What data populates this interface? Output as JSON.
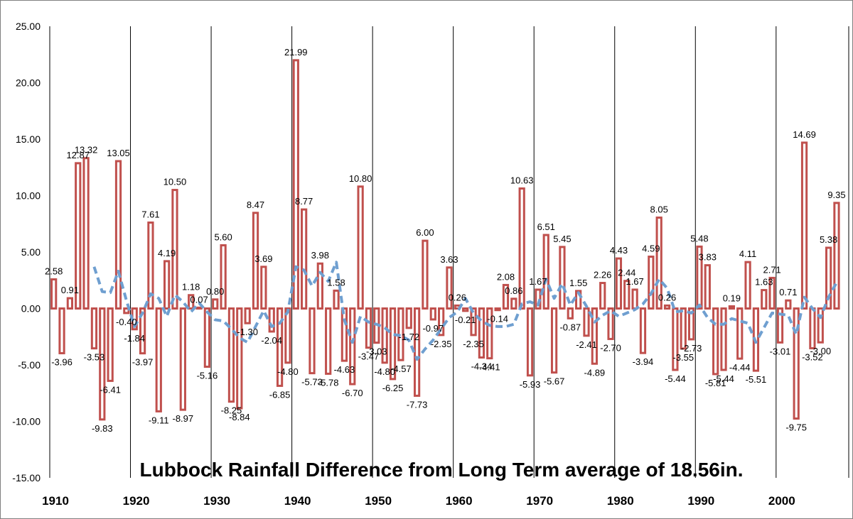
{
  "chart_data": {
    "type": "bar",
    "title": "Lubbock Rainfall Difference from Long Term average of 18.56in.",
    "xlabel": "",
    "ylabel": "",
    "ylim": [
      -15,
      25
    ],
    "yticks": [
      "25.00",
      "20.00",
      "15.00",
      "10.00",
      "5.00",
      "0.00",
      "-5.00",
      "-10.00",
      "-15.00"
    ],
    "xlim": [
      1910,
      2008
    ],
    "xticks": [
      "1910",
      "1920",
      "1930",
      "1940",
      "1950",
      "1960",
      "1970",
      "1980",
      "1990",
      "2000"
    ],
    "grid": "vertical",
    "legend": "none",
    "colors": {
      "bar_fill": "#ffffff",
      "bar_stroke": "#c0504d",
      "trend_line": "#6f9fd0",
      "grid": "#000000"
    },
    "series": [
      {
        "type": "bar",
        "x": [
          1910,
          1911,
          1912,
          1913,
          1914,
          1915,
          1916,
          1917,
          1918,
          1919,
          1920,
          1921,
          1922,
          1923,
          1924,
          1925,
          1926,
          1927,
          1928,
          1929,
          1930,
          1931,
          1932,
          1933,
          1934,
          1935,
          1936,
          1937,
          1938,
          1939,
          1940,
          1941,
          1942,
          1943,
          1944,
          1945,
          1946,
          1947,
          1948,
          1949,
          1950,
          1951,
          1952,
          1953,
          1954,
          1955,
          1956,
          1957,
          1958,
          1959,
          1960,
          1961,
          1962,
          1963,
          1964,
          1965,
          1966,
          1967,
          1968,
          1969,
          1970,
          1971,
          1972,
          1973,
          1974,
          1975,
          1976,
          1977,
          1978,
          1979,
          1980,
          1981,
          1982,
          1983,
          1984,
          1985,
          1986,
          1987,
          1988,
          1989,
          1990,
          1991,
          1992,
          1993,
          1994,
          1995,
          1996,
          1997,
          1998,
          1999,
          2000,
          2001,
          2002,
          2003,
          2004,
          2005,
          2006,
          2007
        ],
        "values": [
          2.58,
          -3.96,
          0.91,
          12.87,
          13.32,
          -3.53,
          -9.83,
          -6.41,
          13.05,
          -0.4,
          -1.84,
          -3.97,
          7.61,
          -9.11,
          4.19,
          10.5,
          -8.97,
          1.18,
          0.07,
          -5.16,
          0.8,
          5.6,
          -8.25,
          -8.84,
          -1.3,
          8.47,
          3.69,
          -2.04,
          -6.85,
          -4.8,
          21.99,
          8.77,
          -5.73,
          3.98,
          -5.78,
          1.58,
          -4.63,
          -6.7,
          10.8,
          -3.47,
          -3.03,
          -4.8,
          -6.25,
          -4.57,
          -1.72,
          -7.73,
          6.0,
          -0.97,
          -2.35,
          3.63,
          0.26,
          -0.21,
          -2.35,
          -4.34,
          -4.41,
          -0.14,
          2.08,
          0.86,
          10.63,
          -5.93,
          1.67,
          6.51,
          -5.67,
          5.45,
          -0.87,
          1.55,
          -2.41,
          -4.89,
          2.26,
          -2.7,
          4.43,
          2.44,
          1.67,
          -3.94,
          4.59,
          8.05,
          0.26,
          -5.44,
          -3.55,
          -2.73,
          5.48,
          3.83,
          -5.81,
          -5.44,
          0.19,
          -4.44,
          4.11,
          -5.51,
          1.63,
          2.71,
          -3.01,
          0.71,
          -9.75,
          14.69,
          -3.52,
          -3.0,
          5.38,
          9.35
        ]
      },
      {
        "type": "line",
        "style": "dashed",
        "x": [
          1915,
          1916,
          1917,
          1918,
          1919,
          1920,
          1921,
          1922,
          1923,
          1924,
          1925,
          1926,
          1927,
          1928,
          1929,
          1930,
          1931,
          1932,
          1933,
          1934,
          1935,
          1936,
          1937,
          1938,
          1939,
          1940,
          1941,
          1942,
          1943,
          1944,
          1945,
          1946,
          1947,
          1948,
          1949,
          1950,
          1951,
          1952,
          1953,
          1954,
          1955,
          1956,
          1957,
          1958,
          1959,
          1960,
          1961,
          1962,
          1963,
          1964,
          1965,
          1966,
          1967,
          1968,
          1969,
          1970,
          1971,
          1972,
          1973,
          1974,
          1975,
          1976,
          1977,
          1978,
          1979,
          1980,
          1981,
          1982,
          1983,
          1984,
          1985,
          1986,
          1987,
          1988,
          1989,
          1990,
          1991,
          1992,
          1993,
          1994,
          1995,
          1996,
          1997,
          1998,
          1999,
          2000,
          2001,
          2002,
          2003,
          2004,
          2005,
          2006,
          2007
        ],
        "values": [
          3.7,
          1.5,
          1.4,
          3.3,
          0.7,
          -1.6,
          -0.4,
          1.3,
          0.9,
          -0.7,
          1.2,
          0.6,
          -0.3,
          0.5,
          -0.3,
          -1.0,
          -1.1,
          -1.8,
          -2.6,
          -3.0,
          -1.6,
          -0.2,
          -1.6,
          -1.3,
          -0.3,
          3.7,
          3.4,
          2.0,
          3.2,
          2.4,
          4.1,
          -1.0,
          -3.0,
          -0.7,
          -1.2,
          -1.4,
          -1.7,
          -2.3,
          -2.4,
          -2.8,
          -4.5,
          -3.6,
          -2.8,
          -1.8,
          -0.8,
          -0.3,
          0.9,
          -0.4,
          -1.1,
          -1.5,
          -1.6,
          -1.6,
          -1.4,
          0.4,
          0.6,
          0.3,
          2.6,
          0.9,
          2.2,
          0.3,
          1.4,
          0.2,
          -1.2,
          -0.6,
          -0.2,
          -0.7,
          -0.4,
          -0.1,
          0.4,
          1.3,
          2.6,
          1.8,
          -0.3,
          -0.2,
          -0.4,
          0.3,
          -0.8,
          -1.4,
          -1.4,
          -0.9,
          -1.1,
          -1.3,
          -3.0,
          -1.7,
          -0.4,
          -0.5,
          -0.6,
          -2.3,
          1.0,
          0.0,
          -0.8,
          1.0,
          2.3
        ]
      }
    ]
  }
}
